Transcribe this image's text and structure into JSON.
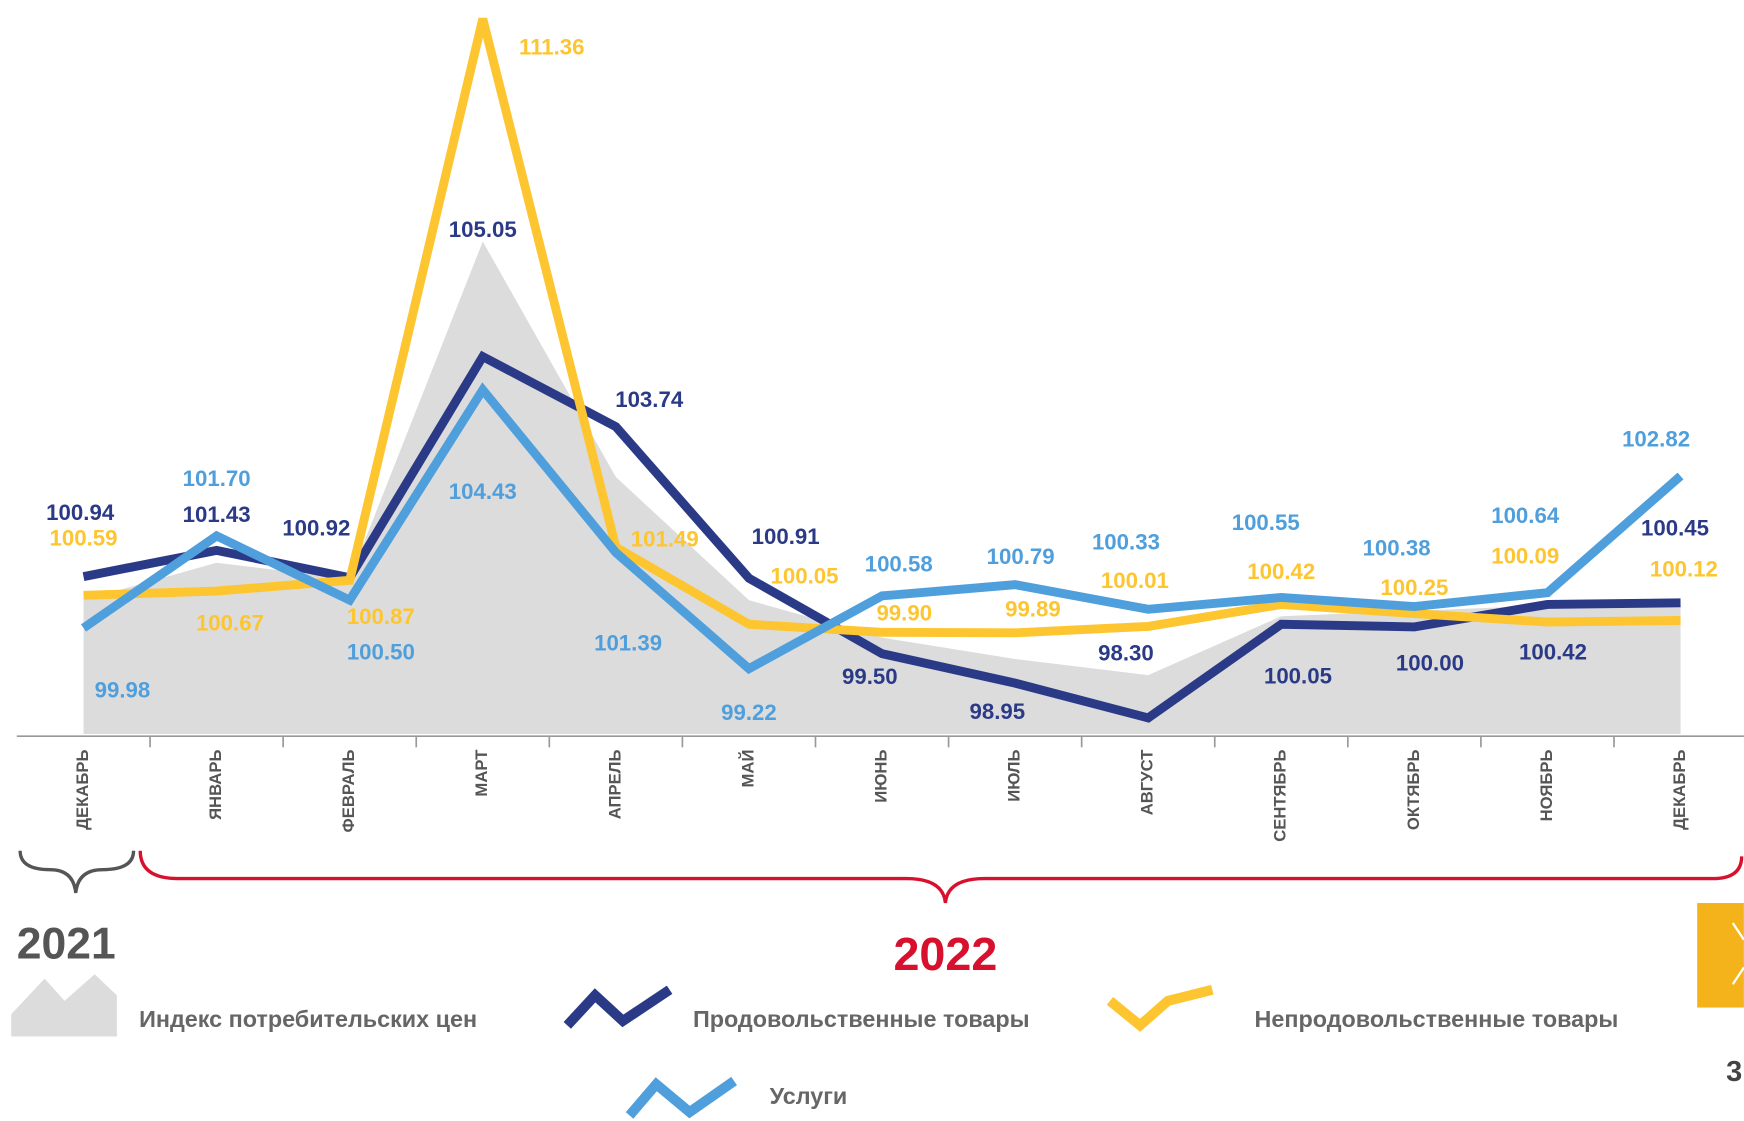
{
  "chart_data": {
    "type": "line",
    "categories": [
      "ДЕКАБРЬ",
      "ЯНВАРЬ",
      "ФЕВРАЛЬ",
      "МАРТ",
      "АПРЕЛЬ",
      "МАЙ",
      "ИЮНЬ",
      "ИЮЛЬ",
      "АВГУСТ",
      "СЕНТЯБРЬ",
      "ОКТЯБРЬ",
      "НОЯБРЬ",
      "ДЕКАБРЬ"
    ],
    "period_labels": [
      "2021",
      "2022"
    ],
    "ylim": [
      98,
      111.4
    ],
    "series": [
      {
        "name": "Индекс потребительских  цен",
        "color": "#dcdcdc",
        "area": true,
        "values": [
          100.5,
          101.2,
          100.9,
          107.2,
          102.8,
          100.5,
          99.8,
          99.4,
          99.1,
          100.2,
          100.3,
          100.4,
          100.4
        ]
      },
      {
        "name": "Продовольственные товары",
        "color": "#2b3a87",
        "values": [
          100.94,
          101.43,
          100.92,
          105.05,
          103.74,
          100.91,
          99.5,
          98.95,
          98.3,
          100.05,
          100.0,
          100.42,
          100.45
        ],
        "value_labels": [
          "100.94",
          "101.43",
          "100.92",
          "105.05",
          "103.74",
          "100.91",
          "99.50",
          "98.95",
          "98.30",
          "100.05",
          "100.00",
          "100.42",
          "100.45"
        ]
      },
      {
        "name": "Непродовольственные товары",
        "color": "#fdc530",
        "values": [
          100.59,
          100.67,
          100.87,
          111.36,
          101.49,
          100.05,
          99.9,
          99.89,
          100.01,
          100.42,
          100.25,
          100.09,
          100.12
        ],
        "value_labels": [
          "100.59",
          "100.67",
          "100.87",
          "111.36",
          "101.49",
          "100.05",
          "99.90",
          "99.89",
          "100.01",
          "100.42",
          "100.25",
          "100.09",
          "100.12"
        ]
      },
      {
        "name": "Услуги",
        "color": "#4f9fdc",
        "values": [
          99.98,
          101.7,
          100.5,
          104.43,
          101.39,
          99.22,
          100.58,
          100.79,
          100.33,
          100.55,
          100.38,
          100.64,
          102.82
        ],
        "value_labels": [
          "99.98",
          "101.70",
          "100.50",
          "104.43",
          "101.39",
          "99.22",
          "100.58",
          "100.79",
          "100.33",
          "100.55",
          "100.38",
          "100.64",
          "102.82"
        ]
      }
    ],
    "page_number": "3"
  }
}
